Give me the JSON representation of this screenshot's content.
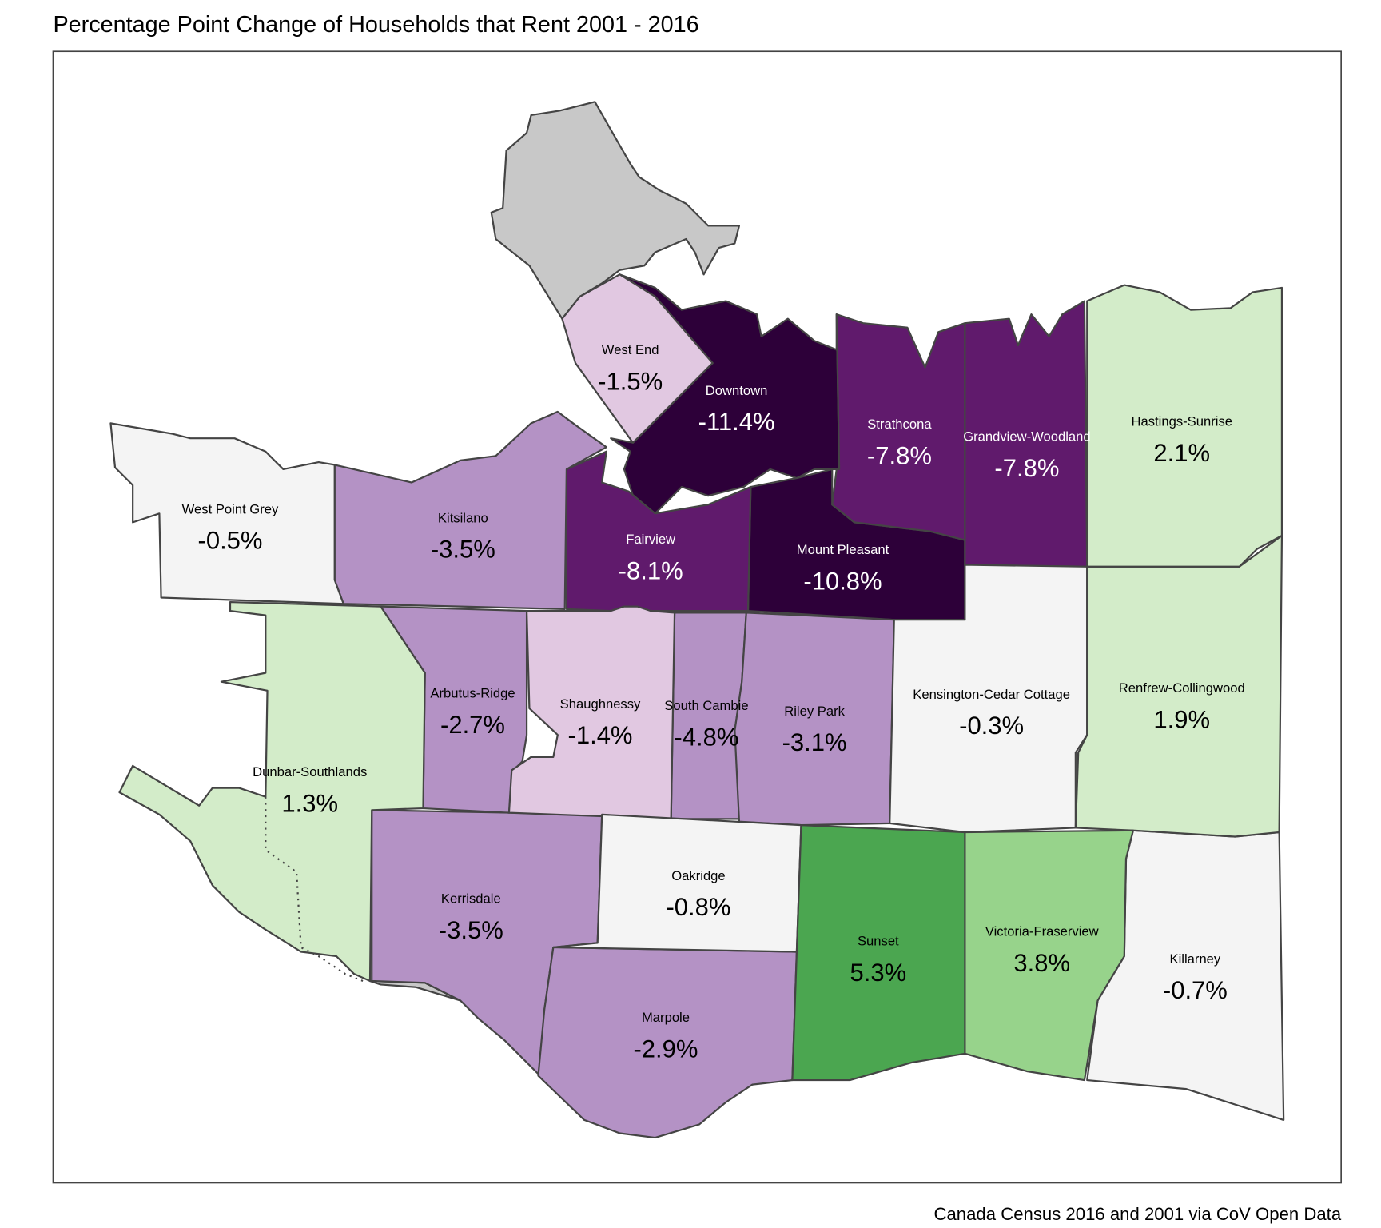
{
  "title": "Percentage Point Change of Households that Rent 2001 - 2016",
  "caption": "Canada Census 2016 and 2001 via CoV Open Data",
  "chart_data": {
    "type": "choropleth",
    "title": "Percentage Point Change of Households that Rent 2001 - 2016",
    "unit": "percentage points",
    "colors": {
      "dark_purple": "#2d0039",
      "purple": "#601a6c",
      "mid_purple": "#b492c5",
      "light_purple": "#e1c8e1",
      "neutral": "#f4f4f4",
      "light_green": "#d3ecc9",
      "green": "#97d38b",
      "dark_green": "#4ba650",
      "no_data": "#c8c8c8"
    },
    "regions": [
      {
        "name": "Downtown",
        "value": -11.4,
        "label": "-11.4%",
        "color": "dark_purple"
      },
      {
        "name": "Mount Pleasant",
        "value": -10.8,
        "label": "-10.8%",
        "color": "dark_purple"
      },
      {
        "name": "Fairview",
        "value": -8.1,
        "label": "-8.1%",
        "color": "purple"
      },
      {
        "name": "Strathcona",
        "value": -7.8,
        "label": "-7.8%",
        "color": "purple"
      },
      {
        "name": "Grandview-Woodland",
        "value": -7.8,
        "label": "-7.8%",
        "color": "purple"
      },
      {
        "name": "South Cambie",
        "value": -4.8,
        "label": "-4.8%",
        "color": "mid_purple"
      },
      {
        "name": "Kitsilano",
        "value": -3.5,
        "label": "-3.5%",
        "color": "mid_purple"
      },
      {
        "name": "Kerrisdale",
        "value": -3.5,
        "label": "-3.5%",
        "color": "mid_purple"
      },
      {
        "name": "Riley Park",
        "value": -3.1,
        "label": "-3.1%",
        "color": "mid_purple"
      },
      {
        "name": "Marpole",
        "value": -2.9,
        "label": "-2.9%",
        "color": "mid_purple"
      },
      {
        "name": "Arbutus-Ridge",
        "value": -2.7,
        "label": "-2.7%",
        "color": "mid_purple"
      },
      {
        "name": "West End",
        "value": -1.5,
        "label": "-1.5%",
        "color": "light_purple"
      },
      {
        "name": "Shaughnessy",
        "value": -1.4,
        "label": "-1.4%",
        "color": "light_purple"
      },
      {
        "name": "Oakridge",
        "value": -0.8,
        "label": "-0.8%",
        "color": "neutral"
      },
      {
        "name": "Killarney",
        "value": -0.7,
        "label": "-0.7%",
        "color": "neutral"
      },
      {
        "name": "West Point Grey",
        "value": -0.5,
        "label": "-0.5%",
        "color": "neutral"
      },
      {
        "name": "Kensington-Cedar Cottage",
        "value": -0.3,
        "label": "-0.3%",
        "color": "neutral"
      },
      {
        "name": "Dunbar-Southlands",
        "value": 1.3,
        "label": "1.3%",
        "color": "light_green"
      },
      {
        "name": "Renfrew-Collingwood",
        "value": 1.9,
        "label": "1.9%",
        "color": "light_green"
      },
      {
        "name": "Hastings-Sunrise",
        "value": 2.1,
        "label": "2.1%",
        "color": "light_green"
      },
      {
        "name": "Victoria-Fraserview",
        "value": 3.8,
        "label": "3.8%",
        "color": "green"
      },
      {
        "name": "Sunset",
        "value": 5.3,
        "label": "5.3%",
        "color": "dark_green"
      }
    ]
  }
}
